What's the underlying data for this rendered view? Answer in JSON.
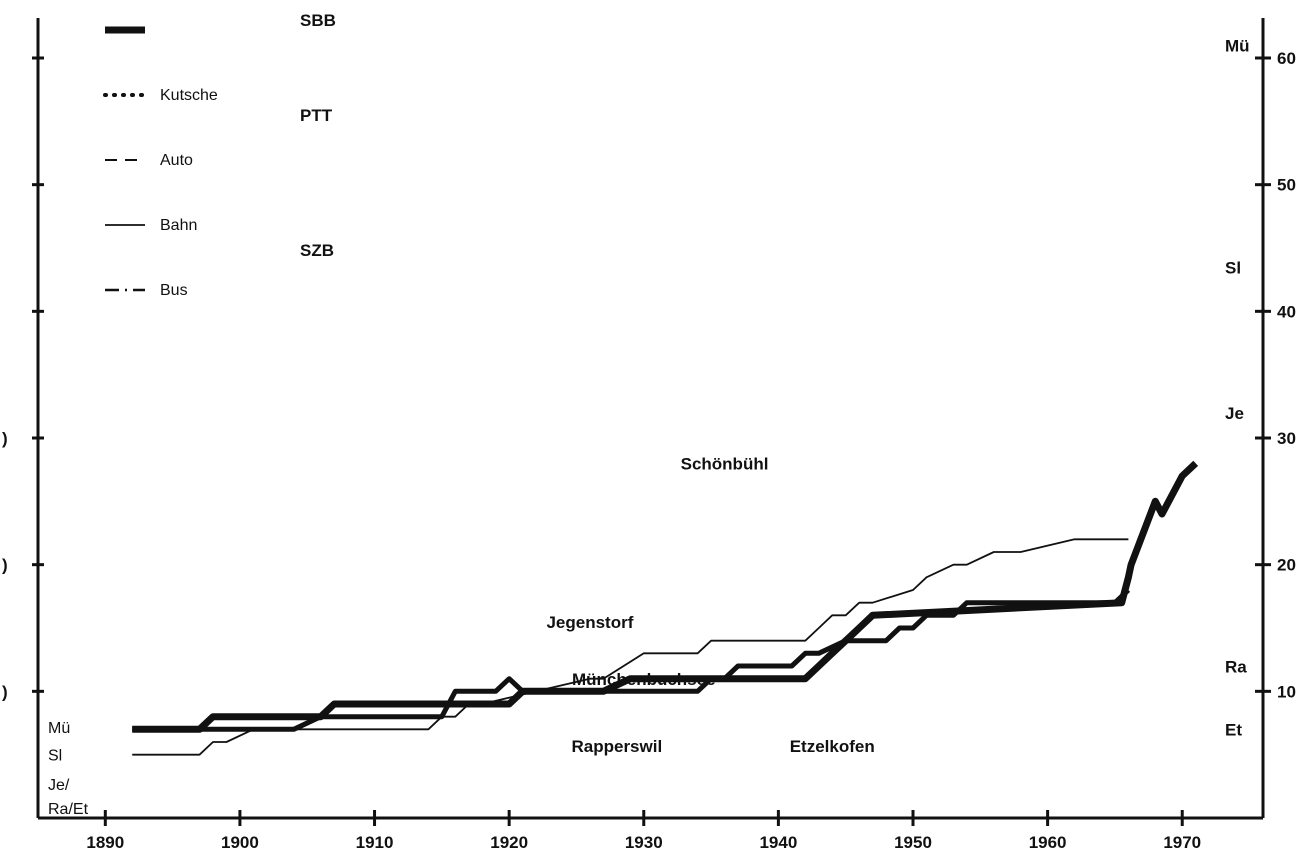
{
  "chart_data": {
    "type": "line",
    "xlim": [
      1885,
      1976
    ],
    "ylim": [
      0,
      60
    ],
    "x_ticks": [
      1890,
      1900,
      1910,
      1920,
      1930,
      1940,
      1950,
      1960,
      1970
    ],
    "x_tick_labels": [
      "1890",
      "1900",
      "1910",
      "1920",
      "1930",
      "1940",
      "1950",
      "1960",
      "1970"
    ],
    "y_right_ticks": [
      10,
      20,
      30,
      40,
      50,
      60
    ],
    "y_right_tick_labels": [
      "10",
      "20",
      "30",
      "40",
      "50",
      "60"
    ],
    "y_left_tick_labels": [
      ")",
      ")",
      ")"
    ],
    "legend": {
      "groups": [
        {
          "name": "SBB",
          "items": [
            {
              "label": "",
              "style": "sbb"
            },
            {
              "label": "Kutsche",
              "style": "dotted"
            }
          ]
        },
        {
          "name": "PTT",
          "items": [
            {
              "label": "Auto",
              "style": "dashed"
            },
            {
              "label": "Bahn",
              "style": "solid"
            }
          ]
        },
        {
          "name": "SZB",
          "items": [
            {
              "label": "Bus",
              "style": "dashdot"
            }
          ]
        }
      ]
    },
    "annotations": [
      {
        "text": "Schönbühl",
        "x": 1936,
        "y": 27.5
      },
      {
        "text": "Jegenstorf",
        "x": 1926,
        "y": 15
      },
      {
        "text": "Münchenbuchsee",
        "x": 1930,
        "y": 10.5
      },
      {
        "text": "Rapperswil",
        "x": 1928,
        "y": 5.2
      },
      {
        "text": "Etzelkofen",
        "x": 1944,
        "y": 5.2
      }
    ],
    "left_labels": [
      {
        "text": "Mü",
        "y": 7.2
      },
      {
        "text": "Sl",
        "y": 5
      },
      {
        "text": "Je/",
        "y": 2.7
      },
      {
        "text": "Ra/Et",
        "y": 0.8
      }
    ],
    "right_labels": [
      {
        "text": "Mü",
        "y": 60.5
      },
      {
        "text": "Sl",
        "y": 43
      },
      {
        "text": "Je",
        "y": 31.5
      },
      {
        "text": "Ra",
        "y": 11.5
      },
      {
        "text": "Et",
        "y": 6.5
      }
    ],
    "series": [
      {
        "style": "sbb",
        "x": [
          1892,
          1897,
          1898,
          1906,
          1907,
          1908,
          1914,
          1915,
          1916,
          1920,
          1921,
          1926,
          1927,
          1929,
          1930,
          1934,
          1935,
          1942,
          1943,
          1944,
          1945,
          1946,
          1947,
          1965.5,
          1966,
          1966.2,
          1968,
          1968.5,
          1970,
          1971
        ],
        "y": [
          7,
          7,
          8,
          8,
          9,
          9,
          9,
          9,
          9,
          9,
          10,
          10,
          10,
          11,
          11,
          11,
          11,
          11,
          12,
          13,
          14,
          15,
          16,
          17,
          19,
          20,
          25,
          24,
          27,
          28
        ]
      },
      {
        "style": "solid",
        "x": [
          1892,
          1897,
          1898,
          1899,
          1901,
          1903,
          1905,
          1910,
          1914,
          1915,
          1916,
          1917,
          1918,
          1922,
          1926,
          1927,
          1930,
          1934,
          1935,
          1942,
          1943,
          1944,
          1945,
          1946,
          1947,
          1950,
          1951,
          1953,
          1954,
          1956,
          1958,
          1962,
          1965.5,
          1966
        ],
        "y": [
          5,
          5,
          6,
          6,
          7,
          7,
          7,
          7,
          7,
          8,
          8,
          9,
          9,
          10,
          11,
          11,
          13,
          13,
          14,
          14,
          15,
          16,
          16,
          17,
          17,
          18,
          19,
          20,
          20,
          21,
          21,
          22,
          22,
          22
        ]
      },
      {
        "style": "sbb_thin",
        "x": [
          1892,
          1901,
          1904,
          1906,
          1908,
          1914,
          1915,
          1916,
          1917,
          1918,
          1919,
          1920,
          1921,
          1922,
          1926,
          1928,
          1931,
          1932,
          1933,
          1934,
          1935,
          1936,
          1937,
          1941,
          1942,
          1943,
          1945,
          1948,
          1949,
          1950,
          1951,
          1952,
          1953,
          1954,
          1957,
          1965,
          1966
        ],
        "y": [
          7,
          7,
          7,
          8,
          8,
          8,
          8,
          10,
          10,
          10,
          10,
          11,
          10,
          10,
          10,
          10,
          10,
          10,
          10,
          10,
          11,
          11,
          12,
          12,
          13,
          13,
          14,
          14,
          15,
          15,
          16,
          16,
          16,
          17,
          17,
          17,
          18
        ]
      }
    ]
  }
}
